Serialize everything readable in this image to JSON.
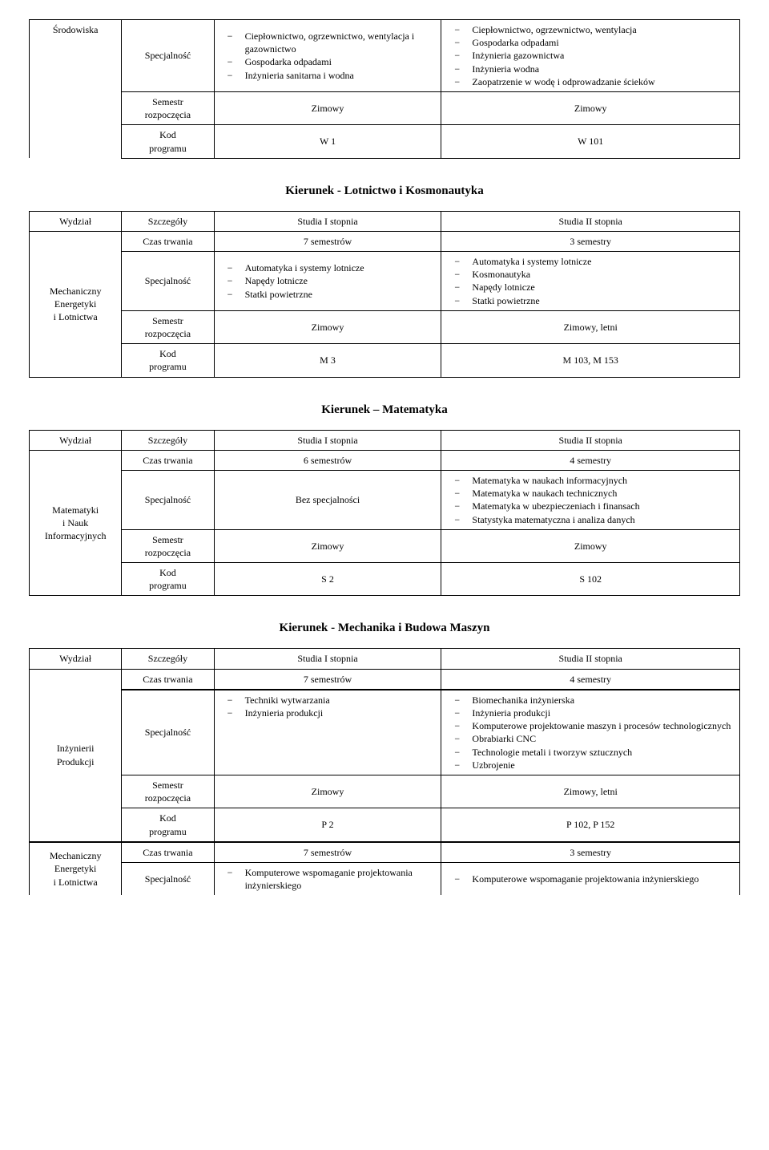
{
  "labels": {
    "wydzial": "Wydział",
    "szczegoly": "Szczegóły",
    "studia1": "Studia I stopnia",
    "studia2": "Studia II stopnia",
    "czas": "Czas trwania",
    "spec": "Specjalność",
    "semestr_l1": "Semestr",
    "semestr_l2": "rozpoczęcia",
    "kod_l1": "Kod",
    "kod_l2": "programu",
    "bez_spec": "Bez specjalności"
  },
  "titles": {
    "lotnictwo": "Kierunek - Lotnictwo i Kosmonautyka",
    "matematyka": "Kierunek – Matematyka",
    "mechanika": "Kierunek - Mechanika i Budowa Maszyn"
  },
  "t1": {
    "wydzial": "Środowiska",
    "spec1": [
      "Ciepłownictwo, ogrzewnictwo, wentylacja i gazownictwo",
      "Gospodarka odpadami",
      "Inżynieria sanitarna i wodna"
    ],
    "spec2": [
      "Ciepłownictwo, ogrzewnictwo, wentylacja",
      "Gospodarka odpadami",
      "Inżynieria gazownictwa",
      "Inżynieria wodna",
      "Zaopatrzenie w wodę i odprowadzanie ścieków"
    ],
    "sem1": "Zimowy",
    "sem2": "Zimowy",
    "kod1": "W 1",
    "kod2": "W 101"
  },
  "t2": {
    "wydzial_l1": "Mechaniczny",
    "wydzial_l2": "Energetyki",
    "wydzial_l3": "i Lotnictwa",
    "czas1": "7 semestrów",
    "czas2": "3 semestry",
    "spec1": [
      "Automatyka i systemy lotnicze",
      "Napędy lotnicze",
      "Statki powietrzne"
    ],
    "spec2": [
      "Automatyka i systemy lotnicze",
      "Kosmonautyka",
      "Napędy lotnicze",
      "Statki powietrzne"
    ],
    "sem1": "Zimowy",
    "sem2": "Zimowy, letni",
    "kod1": "M 3",
    "kod2": "M 103, M 153"
  },
  "t3": {
    "wydzial_l1": "Matematyki",
    "wydzial_l2": "i Nauk",
    "wydzial_l3": "Informacyjnych",
    "czas1": "6 semestrów",
    "czas2": "4 semestry",
    "spec2": [
      "Matematyka w naukach informacyjnych",
      "Matematyka w naukach technicznych",
      "Matematyka w ubezpieczeniach i finansach",
      "Statystyka matematyczna i analiza danych"
    ],
    "sem1": "Zimowy",
    "sem2": "Zimowy",
    "kod1": "S 2",
    "kod2": "S 102"
  },
  "t4a": {
    "wydzial_l1": "Inżynierii",
    "wydzial_l2": "Produkcji",
    "czas1": "7 semestrów",
    "czas2": "4 semestry",
    "spec1": [
      "Techniki wytwarzania",
      "Inżynieria produkcji"
    ],
    "spec2": [
      "Biomechanika inżynierska",
      "Inżynieria produkcji",
      "Komputerowe projektowanie maszyn i procesów technologicznych",
      "Obrabiarki CNC",
      "Technologie metali i tworzyw sztucznych",
      "Uzbrojenie"
    ],
    "sem1": "Zimowy",
    "sem2": "Zimowy, letni",
    "kod1": "P 2",
    "kod2": "P 102, P 152"
  },
  "t4b": {
    "wydzial_l1": "Mechaniczny",
    "wydzial_l2": "Energetyki",
    "wydzial_l3": "i Lotnictwa",
    "czas1": "7 semestrów",
    "czas2": "3 semestry",
    "spec1": [
      "Komputerowe wspomaganie projektowania inżynierskiego"
    ],
    "spec2": [
      "Komputerowe wspomaganie projektowania inżynierskiego"
    ]
  }
}
